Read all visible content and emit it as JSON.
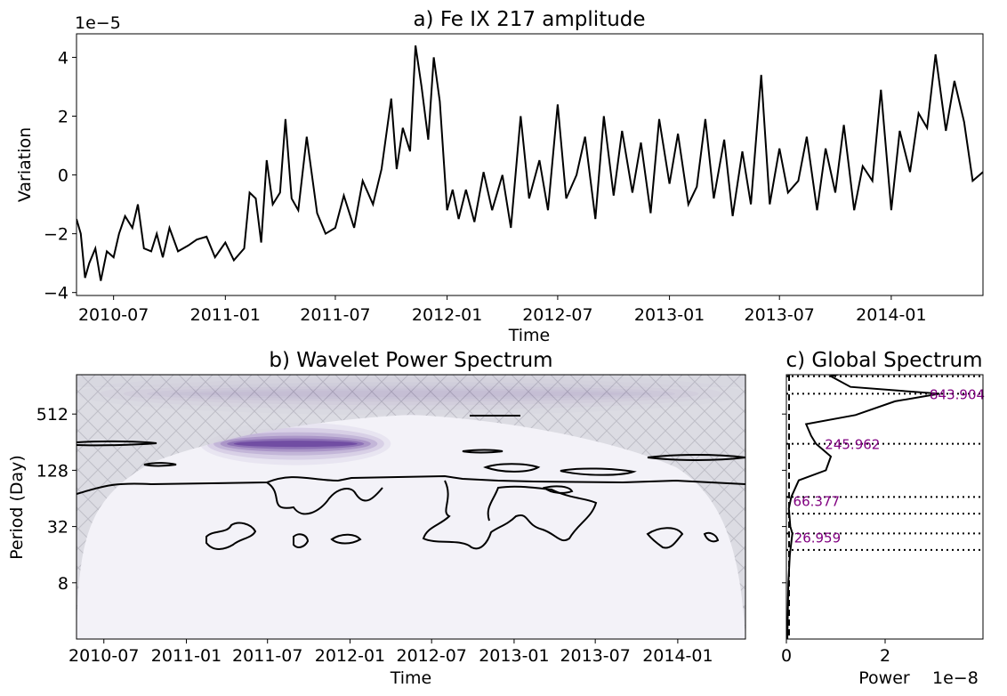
{
  "chart_data": [
    {
      "type": "line",
      "title": "a) Fe IX 217 amplitude",
      "xlabel": "Time",
      "ylabel": "Variation",
      "offset_text": "1e−5",
      "xlim": [
        "2010-05-01",
        "2014-06-01"
      ],
      "ylim": [
        -4.1,
        4.8
      ],
      "x_ticks": [
        "2010-07",
        "2011-01",
        "2011-07",
        "2012-01",
        "2012-07",
        "2013-01",
        "2013-07",
        "2014-01"
      ],
      "y_ticks": [
        -4,
        -2,
        0,
        2,
        4
      ],
      "y_tick_labels": [
        "−4",
        "−2",
        "0",
        "2",
        "4"
      ],
      "series": [
        {
          "x": [
            "2010-05-01",
            "2010-05-08",
            "2010-05-15",
            "2010-05-22",
            "2010-06-01",
            "2010-06-10",
            "2010-06-20",
            "2010-07-01",
            "2010-07-10",
            "2010-07-20",
            "2010-08-01",
            "2010-08-10",
            "2010-08-20",
            "2010-09-01",
            "2010-09-10",
            "2010-09-20",
            "2010-10-01",
            "2010-10-15",
            "2010-11-01",
            "2010-11-15",
            "2010-12-01",
            "2010-12-15",
            "2011-01-01",
            "2011-01-15",
            "2011-02-01",
            "2011-02-10",
            "2011-02-20",
            "2011-03-01",
            "2011-03-10",
            "2011-03-20",
            "2011-04-01",
            "2011-04-10",
            "2011-04-20",
            "2011-05-01",
            "2011-05-15",
            "2011-06-01",
            "2011-06-15",
            "2011-07-01",
            "2011-07-15",
            "2011-08-01",
            "2011-08-15",
            "2011-09-01",
            "2011-09-15",
            "2011-10-01",
            "2011-10-10",
            "2011-10-20",
            "2011-11-01",
            "2011-11-10",
            "2011-11-20",
            "2011-12-01",
            "2011-12-10",
            "2011-12-20",
            "2012-01-01",
            "2012-01-10",
            "2012-01-20",
            "2012-02-01",
            "2012-02-15",
            "2012-03-01",
            "2012-03-15",
            "2012-04-01",
            "2012-04-15",
            "2012-05-01",
            "2012-05-15",
            "2012-06-01",
            "2012-06-15",
            "2012-07-01",
            "2012-07-15",
            "2012-08-01",
            "2012-08-15",
            "2012-09-01",
            "2012-09-15",
            "2012-10-01",
            "2012-10-15",
            "2012-11-01",
            "2012-11-15",
            "2012-12-01",
            "2012-12-15",
            "2013-01-01",
            "2013-01-15",
            "2013-02-01",
            "2013-02-15",
            "2013-03-01",
            "2013-03-15",
            "2013-04-01",
            "2013-04-15",
            "2013-05-01",
            "2013-05-15",
            "2013-06-01",
            "2013-06-15",
            "2013-07-01",
            "2013-07-15",
            "2013-08-01",
            "2013-08-15",
            "2013-09-01",
            "2013-09-15",
            "2013-10-01",
            "2013-10-15",
            "2013-11-01",
            "2013-11-15",
            "2013-12-01",
            "2013-12-15",
            "2014-01-01",
            "2014-01-15",
            "2014-02-01",
            "2014-02-15",
            "2014-03-01",
            "2014-03-15",
            "2014-04-01",
            "2014-04-15",
            "2014-05-01",
            "2014-05-15",
            "2014-06-01"
          ],
          "y": [
            -1.5,
            -2.0,
            -3.5,
            -3.0,
            -2.5,
            -3.6,
            -2.6,
            -2.8,
            -2.0,
            -1.4,
            -1.8,
            -1.0,
            -2.5,
            -2.6,
            -2.0,
            -2.8,
            -1.8,
            -2.6,
            -2.4,
            -2.2,
            -2.1,
            -2.8,
            -2.3,
            -2.9,
            -2.5,
            -0.6,
            -0.8,
            -2.3,
            0.5,
            -1.0,
            -0.6,
            1.9,
            -0.8,
            -1.2,
            1.3,
            -1.3,
            -2.0,
            -1.8,
            -0.7,
            -1.8,
            -0.2,
            -1.0,
            0.2,
            2.6,
            0.2,
            1.6,
            0.8,
            4.4,
            3.0,
            1.2,
            4.0,
            2.5,
            -1.2,
            -0.5,
            -1.5,
            -0.5,
            -1.6,
            0.1,
            -1.2,
            0.0,
            -1.8,
            2.0,
            -0.8,
            0.5,
            -1.2,
            2.4,
            -0.8,
            0.0,
            1.3,
            -1.5,
            2.0,
            -0.7,
            1.5,
            -0.6,
            1.1,
            -1.3,
            1.9,
            -0.3,
            1.4,
            -1.0,
            -0.4,
            1.9,
            -0.8,
            1.2,
            -1.4,
            0.8,
            -1.0,
            3.4,
            -1.0,
            0.9,
            -0.6,
            -0.2,
            1.3,
            -1.2,
            0.9,
            -0.6,
            1.7,
            -1.2,
            0.3,
            -0.2,
            2.9,
            -1.2,
            1.5,
            0.1,
            2.1,
            1.6,
            4.1,
            1.5,
            3.2,
            1.8,
            -0.2,
            0.1
          ]
        }
      ]
    },
    {
      "type": "heatmap",
      "title": "b) Wavelet Power Spectrum",
      "xlabel": "Time",
      "ylabel": "Period (Day)",
      "xlim": [
        "2010-05-01",
        "2014-06-01"
      ],
      "y_scale": "log2",
      "y_ticks": [
        8,
        32,
        128,
        512
      ],
      "x_ticks": [
        "2010-07",
        "2011-01",
        "2011-07",
        "2012-01",
        "2012-07",
        "2013-01",
        "2013-07",
        "2014-01"
      ],
      "colormap": "Purples",
      "cone_of_influence": "hatched",
      "bands": [
        {
          "period": 843.904,
          "from": "2010-05-01",
          "to": "2014-06-01",
          "level": 0.95
        },
        {
          "period": 245.962,
          "from": "2011-02-01",
          "to": "2012-04-01",
          "level": 0.6
        }
      ]
    },
    {
      "type": "line",
      "title": "c) Global Spectrum",
      "xlabel": "Power",
      "offset_text": "1e−8",
      "x_ticks": [
        0,
        2
      ],
      "y_scale": "log2",
      "peaks": [
        {
          "period": 843.904,
          "label": "843.904"
        },
        {
          "period": 245.962,
          "label": "245.962"
        },
        {
          "period": 66.377,
          "label": "66.377"
        },
        {
          "period": 26.959,
          "label": "26.959"
        }
      ],
      "series": [
        {
          "period": [
            2,
            8,
            16,
            26.959,
            32,
            50,
            66.377,
            100,
            128,
            180,
            245.962,
            300,
            400,
            500,
            700,
            843.904,
            1000,
            1300,
            1600,
            2000
          ],
          "power": [
            0.02,
            0.04,
            0.07,
            0.12,
            0.08,
            0.05,
            0.1,
            0.25,
            0.8,
            0.9,
            0.6,
            0.5,
            0.4,
            1.4,
            2.2,
            3.1,
            1.3,
            0.9,
            1.6,
            1.6
          ]
        }
      ]
    }
  ]
}
